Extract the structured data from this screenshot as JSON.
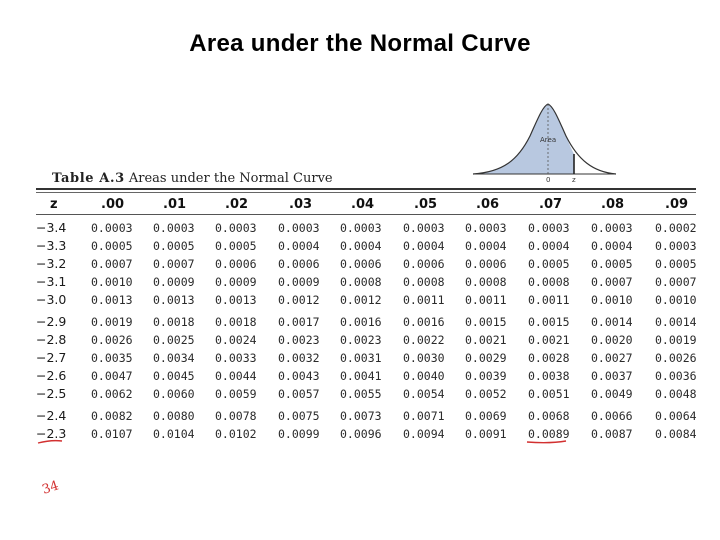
{
  "title": "Area under the Normal Curve",
  "table": {
    "caption_label": "Table A.3",
    "caption_text": "Areas under the Normal Curve",
    "z_header": "z",
    "columns": [
      ".00",
      ".01",
      ".02",
      ".03",
      ".04",
      ".05",
      ".06",
      ".07",
      ".08",
      ".09"
    ],
    "rows": [
      {
        "z": "−3.4",
        "values": [
          "0.0003",
          "0.0003",
          "0.0003",
          "0.0003",
          "0.0003",
          "0.0003",
          "0.0003",
          "0.0003",
          "0.0003",
          "0.0002"
        ]
      },
      {
        "z": "−3.3",
        "values": [
          "0.0005",
          "0.0005",
          "0.0005",
          "0.0004",
          "0.0004",
          "0.0004",
          "0.0004",
          "0.0004",
          "0.0004",
          "0.0003"
        ]
      },
      {
        "z": "−3.2",
        "values": [
          "0.0007",
          "0.0007",
          "0.0006",
          "0.0006",
          "0.0006",
          "0.0006",
          "0.0006",
          "0.0005",
          "0.0005",
          "0.0005"
        ]
      },
      {
        "z": "−3.1",
        "values": [
          "0.0010",
          "0.0009",
          "0.0009",
          "0.0009",
          "0.0008",
          "0.0008",
          "0.0008",
          "0.0008",
          "0.0007",
          "0.0007"
        ]
      },
      {
        "z": "−3.0",
        "values": [
          "0.0013",
          "0.0013",
          "0.0013",
          "0.0012",
          "0.0012",
          "0.0011",
          "0.0011",
          "0.0011",
          "0.0010",
          "0.0010"
        ]
      },
      {
        "z": "−2.9",
        "values": [
          "0.0019",
          "0.0018",
          "0.0018",
          "0.0017",
          "0.0016",
          "0.0016",
          "0.0015",
          "0.0015",
          "0.0014",
          "0.0014"
        ]
      },
      {
        "z": "−2.8",
        "values": [
          "0.0026",
          "0.0025",
          "0.0024",
          "0.0023",
          "0.0023",
          "0.0022",
          "0.0021",
          "0.0021",
          "0.0020",
          "0.0019"
        ]
      },
      {
        "z": "−2.7",
        "values": [
          "0.0035",
          "0.0034",
          "0.0033",
          "0.0032",
          "0.0031",
          "0.0030",
          "0.0029",
          "0.0028",
          "0.0027",
          "0.0026"
        ]
      },
      {
        "z": "−2.6",
        "values": [
          "0.0047",
          "0.0045",
          "0.0044",
          "0.0043",
          "0.0041",
          "0.0040",
          "0.0039",
          "0.0038",
          "0.0037",
          "0.0036"
        ]
      },
      {
        "z": "−2.5",
        "values": [
          "0.0062",
          "0.0060",
          "0.0059",
          "0.0057",
          "0.0055",
          "0.0054",
          "0.0052",
          "0.0051",
          "0.0049",
          "0.0048"
        ]
      },
      {
        "z": "−2.4",
        "values": [
          "0.0082",
          "0.0080",
          "0.0078",
          "0.0075",
          "0.0073",
          "0.0071",
          "0.0069",
          "0.0068",
          "0.0066",
          "0.0064"
        ]
      },
      {
        "z": "−2.3",
        "values": [
          "0.0107",
          "0.0104",
          "0.0102",
          "0.0099",
          "0.0096",
          "0.0094",
          "0.0091",
          "0.0089",
          "0.0087",
          "0.0084"
        ]
      }
    ]
  },
  "figure": {
    "area_label": "Area",
    "zero_label": "0",
    "z_label": "z",
    "fill_color": "#b8c8e0",
    "line_color": "#333333"
  },
  "annotations": {
    "handwritten_note": "34",
    "ink_color": "#d23030"
  }
}
